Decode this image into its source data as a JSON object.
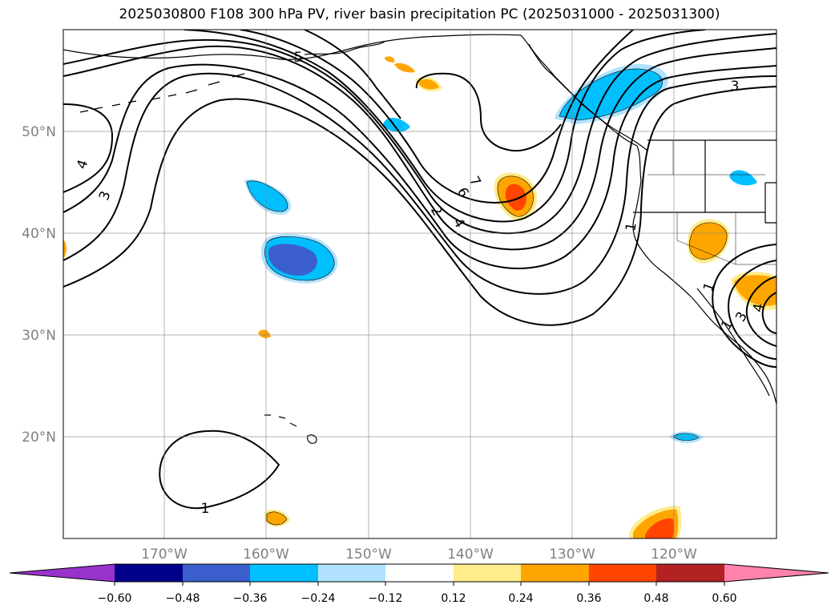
{
  "title": "2025030800 F108 300 hPa PV, river basin precipitation PC (2025031000 - 2025031300)",
  "map": {
    "projection": "PlateCarree",
    "lon_range": [
      180,
      110
    ],
    "lat_range": [
      10,
      60
    ],
    "lat_ticks": [
      "50°N",
      "40°N",
      "30°N",
      "20°N"
    ],
    "lon_ticks": [
      "170°W",
      "160°W",
      "150°W",
      "140°W",
      "130°W",
      "120°W"
    ],
    "gridlines": true,
    "pv_contour_labels": [
      "5",
      "3",
      "4",
      "7",
      "6",
      "2",
      "4",
      "3",
      "1",
      "1",
      "1",
      "4",
      "3",
      "1"
    ]
  },
  "colorbar": {
    "tick_labels": [
      "−0.60",
      "−0.48",
      "−0.36",
      "−0.24",
      "−0.12",
      "0.12",
      "0.24",
      "0.36",
      "0.48",
      "0.60"
    ],
    "colors": [
      "#9932cc",
      "#00008b",
      "#3a5fcd",
      "#00bfff",
      "#b0e2ff",
      "#ffffff",
      "#ffec8b",
      "#ffa500",
      "#ff4500",
      "#b22222",
      "#ff82ab"
    ],
    "extend": "both"
  }
}
